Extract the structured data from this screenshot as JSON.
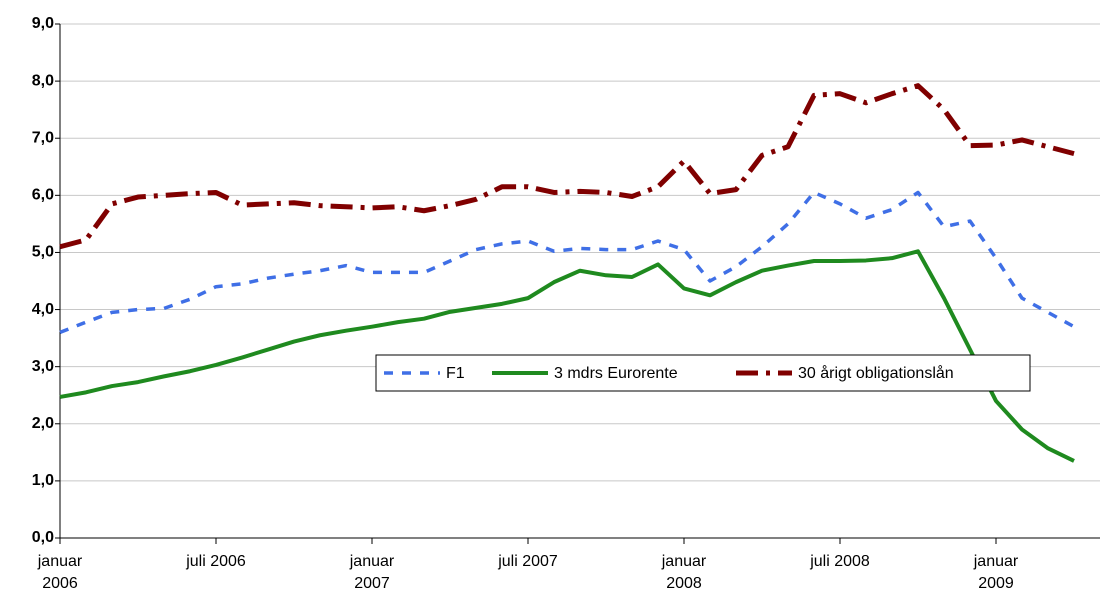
{
  "chart_data": {
    "type": "line",
    "categories": [
      "januar 2006",
      null,
      null,
      null,
      null,
      null,
      "juli 2006",
      null,
      null,
      null,
      null,
      null,
      "januar 2007",
      null,
      null,
      null,
      null,
      null,
      "juli 2007",
      null,
      null,
      null,
      null,
      null,
      "januar 2008",
      null,
      null,
      null,
      null,
      null,
      "juli 2008",
      null,
      null,
      null,
      null,
      null,
      "januar 2009",
      null,
      null,
      null
    ],
    "series": [
      {
        "name": "F1",
        "color": "#3f6fe6",
        "values": [
          3.6,
          3.78,
          3.95,
          4.0,
          4.02,
          4.18,
          4.4,
          4.45,
          4.55,
          4.62,
          4.68,
          4.77,
          4.65,
          4.65,
          4.65,
          4.85,
          5.05,
          5.15,
          5.2,
          5.02,
          5.07,
          5.05,
          5.05,
          5.2,
          5.05,
          4.5,
          4.75,
          5.1,
          5.5,
          6.05,
          5.85,
          5.6,
          5.75,
          6.05,
          5.45,
          5.55,
          4.9,
          4.2,
          3.95,
          3.7
        ]
      },
      {
        "name": "3 mdrs Eurorente",
        "color": "#1f8a1f",
        "values": [
          2.47,
          2.55,
          2.66,
          2.73,
          2.83,
          2.92,
          3.03,
          3.16,
          3.3,
          3.44,
          3.55,
          3.63,
          3.7,
          3.78,
          3.84,
          3.96,
          4.03,
          4.1,
          4.2,
          4.48,
          4.68,
          4.6,
          4.57,
          4.79,
          4.37,
          4.25,
          4.48,
          4.68,
          4.77,
          4.85,
          4.85,
          4.86,
          4.9,
          5.02,
          4.2,
          3.3,
          2.4,
          1.9,
          1.57,
          1.35
        ]
      },
      {
        "name": "30 årigt obligationslån",
        "color": "#800000",
        "values": [
          5.1,
          5.22,
          5.85,
          5.97,
          6.0,
          6.03,
          6.05,
          5.83,
          5.85,
          5.87,
          5.82,
          5.8,
          5.78,
          5.8,
          5.73,
          5.82,
          5.93,
          6.15,
          6.15,
          6.05,
          6.07,
          6.05,
          5.98,
          6.15,
          6.6,
          6.03,
          6.1,
          6.7,
          6.85,
          7.75,
          7.78,
          7.62,
          7.78,
          7.92,
          7.5,
          6.87,
          6.88,
          6.97,
          6.85,
          6.73
        ]
      }
    ],
    "ylim": [
      0,
      9
    ],
    "yticks": [
      {
        "value": 0,
        "label": "0,0"
      },
      {
        "value": 1,
        "label": "1,0"
      },
      {
        "value": 2,
        "label": "2,0"
      },
      {
        "value": 3,
        "label": "3,0"
      },
      {
        "value": 4,
        "label": "4,0"
      },
      {
        "value": 5,
        "label": "5,0"
      },
      {
        "value": 6,
        "label": "6,0"
      },
      {
        "value": 7,
        "label": "7,0"
      },
      {
        "value": 8,
        "label": "8,0"
      },
      {
        "value": 9,
        "label": "9,0"
      }
    ],
    "grid": true
  }
}
